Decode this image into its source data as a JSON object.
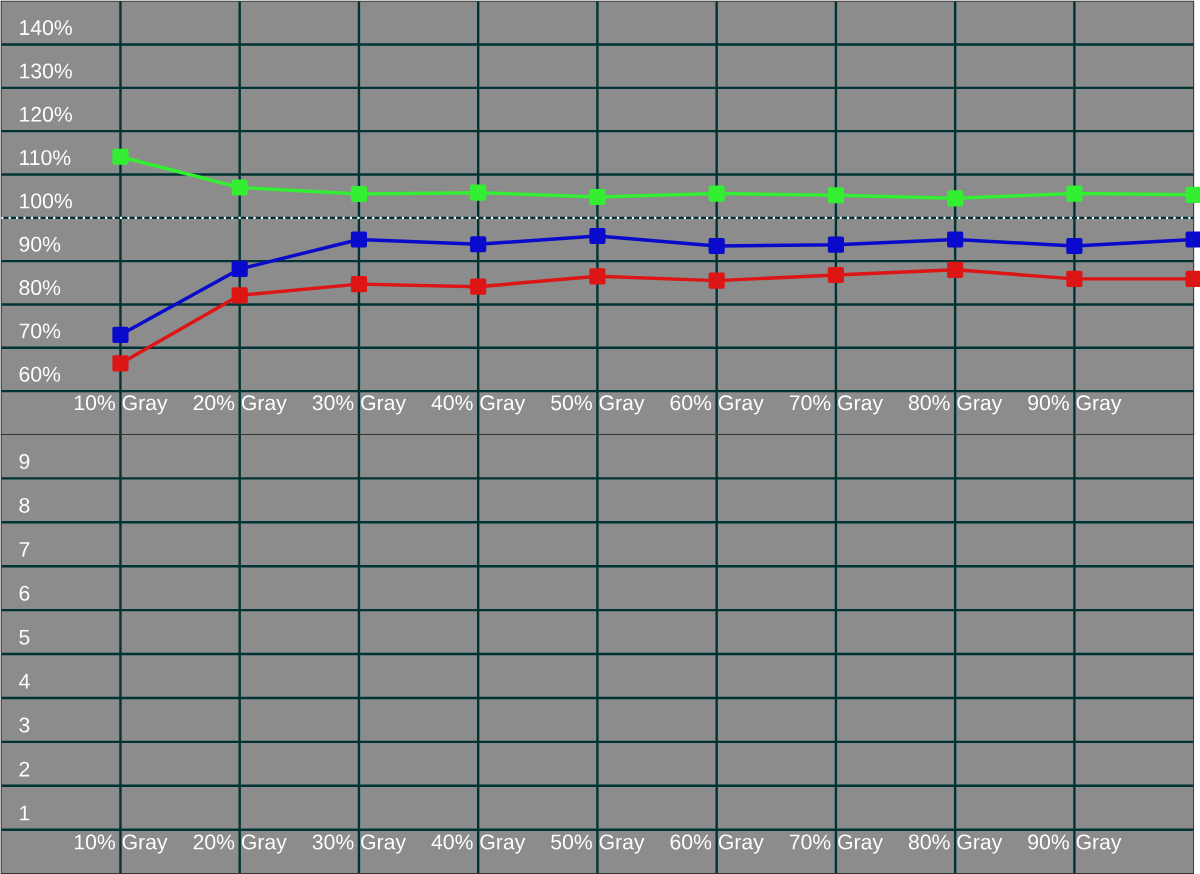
{
  "chart_data": [
    {
      "type": "line",
      "x": [
        10,
        20,
        30,
        40,
        50,
        60,
        70,
        80,
        90,
        100
      ],
      "xlim": [
        0,
        100
      ],
      "xticks": [
        {
          "value": 10,
          "label": "10% Gray"
        },
        {
          "value": 20,
          "label": "20% Gray"
        },
        {
          "value": 30,
          "label": "30% Gray"
        },
        {
          "value": 40,
          "label": "40% Gray"
        },
        {
          "value": 50,
          "label": "50% Gray"
        },
        {
          "value": 60,
          "label": "60% Gray"
        },
        {
          "value": 70,
          "label": "70% Gray"
        },
        {
          "value": 80,
          "label": "80% Gray"
        },
        {
          "value": 90,
          "label": "90% Gray"
        }
      ],
      "ylim": [
        50,
        150
      ],
      "yticks": [
        {
          "value": 60,
          "label": "60%"
        },
        {
          "value": 70,
          "label": "70%"
        },
        {
          "value": 80,
          "label": "80%"
        },
        {
          "value": 90,
          "label": "90%"
        },
        {
          "value": 100,
          "label": "100%"
        },
        {
          "value": 110,
          "label": "110%"
        },
        {
          "value": 120,
          "label": "120%"
        },
        {
          "value": 130,
          "label": "130%"
        },
        {
          "value": 140,
          "label": "140%"
        }
      ],
      "grid": true,
      "marker": "square",
      "line_style": "solid",
      "ref_lines": [
        {
          "axis": "y",
          "value": 100,
          "color": "#ffffff",
          "line_style": "dotted"
        }
      ],
      "series": [
        {
          "color": "#33ee33",
          "values": [
            114.1,
            107.0,
            105.5,
            105.8,
            104.8,
            105.6,
            105.2,
            104.5,
            105.6,
            105.3
          ]
        },
        {
          "color": "#0a0acc",
          "values": [
            73.0,
            88.2,
            95.0,
            93.9,
            95.8,
            93.5,
            93.8,
            95.0,
            93.5,
            95.0
          ]
        },
        {
          "color": "#dd1515",
          "values": [
            66.4,
            82.1,
            84.7,
            84.1,
            86.5,
            85.5,
            86.8,
            88.0,
            85.9,
            85.9
          ]
        }
      ]
    },
    {
      "type": "line",
      "xlim": [
        0,
        100
      ],
      "xticks": [
        {
          "value": 10,
          "label": "10% Gray"
        },
        {
          "value": 20,
          "label": "20% Gray"
        },
        {
          "value": 30,
          "label": "30% Gray"
        },
        {
          "value": 40,
          "label": "40% Gray"
        },
        {
          "value": 50,
          "label": "50% Gray"
        },
        {
          "value": 60,
          "label": "60% Gray"
        },
        {
          "value": 70,
          "label": "70% Gray"
        },
        {
          "value": 80,
          "label": "80% Gray"
        },
        {
          "value": 90,
          "label": "90% Gray"
        }
      ],
      "ylim": [
        0,
        10
      ],
      "yticks": [
        1,
        2,
        3,
        4,
        5,
        6,
        7,
        8,
        9
      ],
      "grid": true
    }
  ]
}
